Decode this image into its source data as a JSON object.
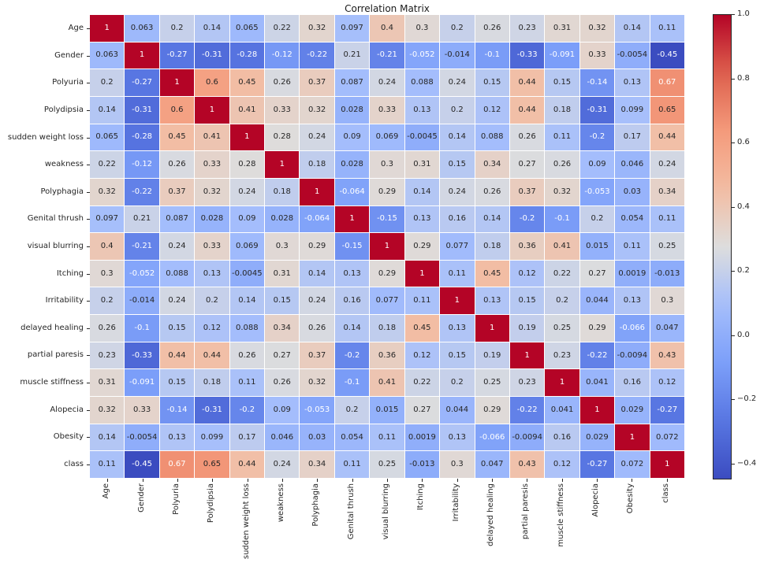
{
  "chart_data": {
    "type": "heatmap",
    "title": "Correlation Matrix",
    "colormap": "coolwarm",
    "vmin": -0.45,
    "vmax": 1.0,
    "grid": false,
    "labels": [
      "Age",
      "Gender",
      "Polyuria",
      "Polydipsia",
      "sudden weight loss",
      "weakness",
      "Polyphagia",
      "Genital thrush",
      "visual blurring",
      "Itching",
      "Irritability",
      "delayed healing",
      "partial paresis",
      "muscle stiffness",
      "Alopecia",
      "Obesity",
      "class"
    ],
    "matrix": [
      [
        1,
        0.063,
        0.2,
        0.14,
        0.065,
        0.22,
        0.32,
        0.097,
        0.4,
        0.3,
        0.2,
        0.26,
        0.23,
        0.31,
        0.32,
        0.14,
        0.11
      ],
      [
        0.063,
        1,
        -0.27,
        -0.31,
        -0.28,
        -0.12,
        -0.22,
        0.21,
        -0.21,
        -0.052,
        -0.014,
        -0.1,
        -0.33,
        -0.091,
        0.33,
        -0.0054,
        -0.45
      ],
      [
        0.2,
        -0.27,
        1,
        0.6,
        0.45,
        0.26,
        0.37,
        0.087,
        0.24,
        0.088,
        0.24,
        0.15,
        0.44,
        0.15,
        -0.14,
        0.13,
        0.67
      ],
      [
        0.14,
        -0.31,
        0.6,
        1,
        0.41,
        0.33,
        0.32,
        0.028,
        0.33,
        0.13,
        0.2,
        0.12,
        0.44,
        0.18,
        -0.31,
        0.099,
        0.65
      ],
      [
        0.065,
        -0.28,
        0.45,
        0.41,
        1,
        0.28,
        0.24,
        0.09,
        0.069,
        -0.0045,
        0.14,
        0.088,
        0.26,
        0.11,
        -0.2,
        0.17,
        0.44
      ],
      [
        0.22,
        -0.12,
        0.26,
        0.33,
        0.28,
        1,
        0.18,
        0.028,
        0.3,
        0.31,
        0.15,
        0.34,
        0.27,
        0.26,
        0.09,
        0.046,
        0.24
      ],
      [
        0.32,
        -0.22,
        0.37,
        0.32,
        0.24,
        0.18,
        1,
        -0.064,
        0.29,
        0.14,
        0.24,
        0.26,
        0.37,
        0.32,
        -0.053,
        0.03,
        0.34
      ],
      [
        0.097,
        0.21,
        0.087,
        0.028,
        0.09,
        0.028,
        -0.064,
        1,
        -0.15,
        0.13,
        0.16,
        0.14,
        -0.2,
        -0.1,
        0.2,
        0.054,
        0.11
      ],
      [
        0.4,
        -0.21,
        0.24,
        0.33,
        0.069,
        0.3,
        0.29,
        -0.15,
        1,
        0.29,
        0.077,
        0.18,
        0.36,
        0.41,
        0.015,
        0.11,
        0.25
      ],
      [
        0.3,
        -0.052,
        0.088,
        0.13,
        -0.0045,
        0.31,
        0.14,
        0.13,
        0.29,
        1,
        0.11,
        0.45,
        0.12,
        0.22,
        0.27,
        0.0019,
        -0.013
      ],
      [
        0.2,
        -0.014,
        0.24,
        0.2,
        0.14,
        0.15,
        0.24,
        0.16,
        0.077,
        0.11,
        1,
        0.13,
        0.15,
        0.2,
        0.044,
        0.13,
        0.3
      ],
      [
        0.26,
        -0.1,
        0.15,
        0.12,
        0.088,
        0.34,
        0.26,
        0.14,
        0.18,
        0.45,
        0.13,
        1,
        0.19,
        0.25,
        0.29,
        -0.066,
        0.047
      ],
      [
        0.23,
        -0.33,
        0.44,
        0.44,
        0.26,
        0.27,
        0.37,
        -0.2,
        0.36,
        0.12,
        0.15,
        0.19,
        1,
        0.23,
        -0.22,
        -0.0094,
        0.43
      ],
      [
        0.31,
        -0.091,
        0.15,
        0.18,
        0.11,
        0.26,
        0.32,
        -0.1,
        0.41,
        0.22,
        0.2,
        0.25,
        0.23,
        1,
        0.041,
        0.16,
        0.12
      ],
      [
        0.32,
        0.33,
        -0.14,
        -0.31,
        -0.2,
        0.09,
        -0.053,
        0.2,
        0.015,
        0.27,
        0.044,
        0.29,
        -0.22,
        0.041,
        1,
        0.029,
        -0.27
      ],
      [
        0.14,
        -0.0054,
        0.13,
        0.099,
        0.17,
        0.046,
        0.03,
        0.054,
        0.11,
        0.0019,
        0.13,
        -0.066,
        -0.0094,
        0.16,
        0.029,
        1,
        0.072
      ],
      [
        0.11,
        -0.45,
        0.67,
        0.65,
        0.44,
        0.24,
        0.34,
        0.11,
        0.25,
        -0.013,
        0.3,
        0.047,
        0.43,
        0.12,
        -0.27,
        0.072,
        1
      ]
    ],
    "colorbar": {
      "position": "right",
      "ticks": [
        {
          "label": "1.0",
          "value": 1.0
        },
        {
          "label": "0.8",
          "value": 0.8
        },
        {
          "label": "0.6",
          "value": 0.6
        },
        {
          "label": "0.4",
          "value": 0.4
        },
        {
          "label": "0.2",
          "value": 0.2
        },
        {
          "label": "0.0",
          "value": 0.0
        },
        {
          "label": "−0.2",
          "value": -0.2
        },
        {
          "label": "−0.4",
          "value": -0.4
        }
      ]
    }
  }
}
